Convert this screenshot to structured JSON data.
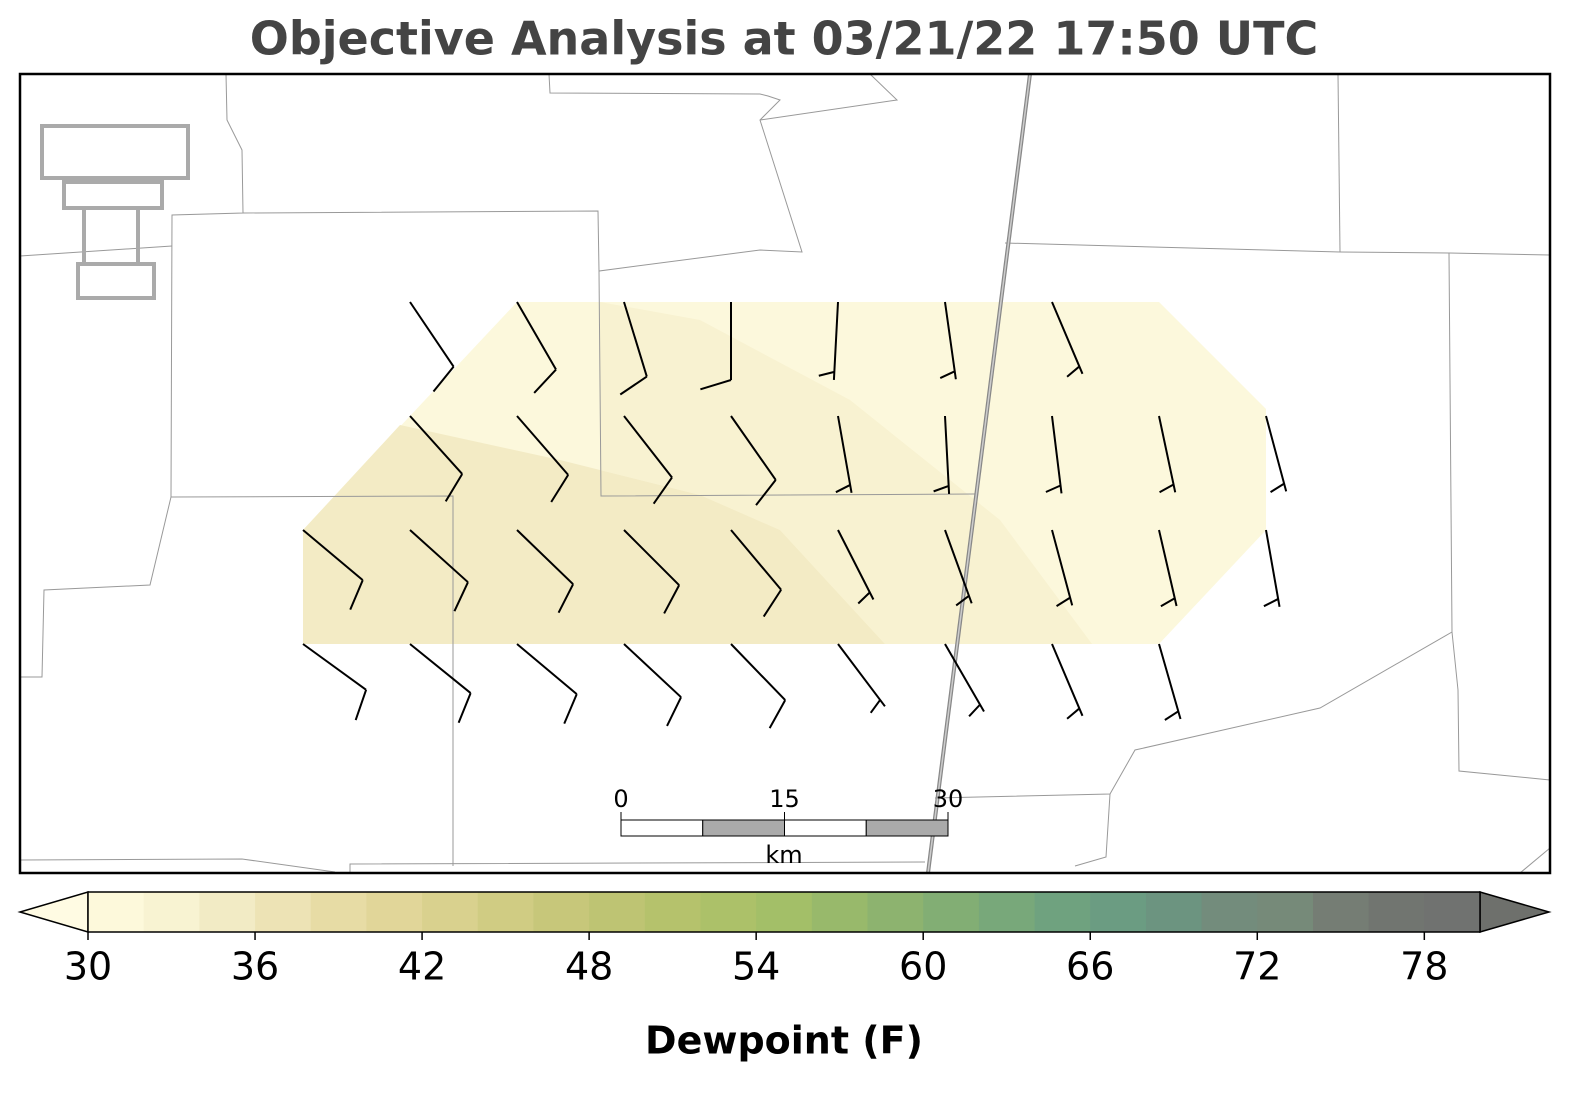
{
  "map": {
    "title": "Objective Analysis at 03/21/22 17:50 UTC",
    "wind_barbs": {
      "direction": [
        [
          null,
          146,
          150,
          163,
          180,
          183,
          172,
          157,
          null,
          null
        ],
        [
          null,
          138,
          139,
          142,
          145,
          170,
          177,
          173,
          168,
          165
        ],
        [
          130,
          132,
          134,
          135,
          140,
          153,
          160,
          165,
          167,
          170
        ],
        [
          126,
          129,
          130,
          133,
          136,
          143,
          150,
          157,
          164,
          null
        ]
      ],
      "speed": [
        [
          null,
          10,
          10,
          10,
          10,
          5,
          5,
          5,
          null,
          null
        ],
        [
          null,
          10,
          10,
          10,
          10,
          5,
          5,
          5,
          5,
          5
        ],
        [
          10,
          10,
          10,
          10,
          10,
          5,
          5,
          5,
          5,
          5
        ],
        [
          10,
          10,
          10,
          10,
          10,
          5,
          5,
          5,
          5,
          null
        ]
      ]
    },
    "scale_bar": {
      "ticks": [
        0,
        15,
        30
      ],
      "unit": "km"
    },
    "colorbar": {
      "label": "Dewpoint (F)",
      "clim": [
        30,
        80
      ],
      "ticks": [
        30,
        36,
        42,
        48,
        54,
        60,
        66,
        72,
        78
      ],
      "colors": [
        "#fdf9db",
        "#f8f3d2",
        "#f2ebc5",
        "#ede3b5",
        "#e7dca5",
        "#e1d699",
        "#d9d18e",
        "#d0cc83",
        "#c7c77a",
        "#bec473",
        "#b5c26c",
        "#acc169",
        "#a3bf68",
        "#98b96b",
        "#8db36f",
        "#82ae74",
        "#78a87a",
        "#6fa27f",
        "#6b9c82",
        "#6c9480",
        "#738c7c",
        "#768a79",
        "#757d74",
        "#717570",
        "#707270"
      ],
      "under_color": "#fffbe3",
      "over_color": "#6e706c"
    }
  }
}
